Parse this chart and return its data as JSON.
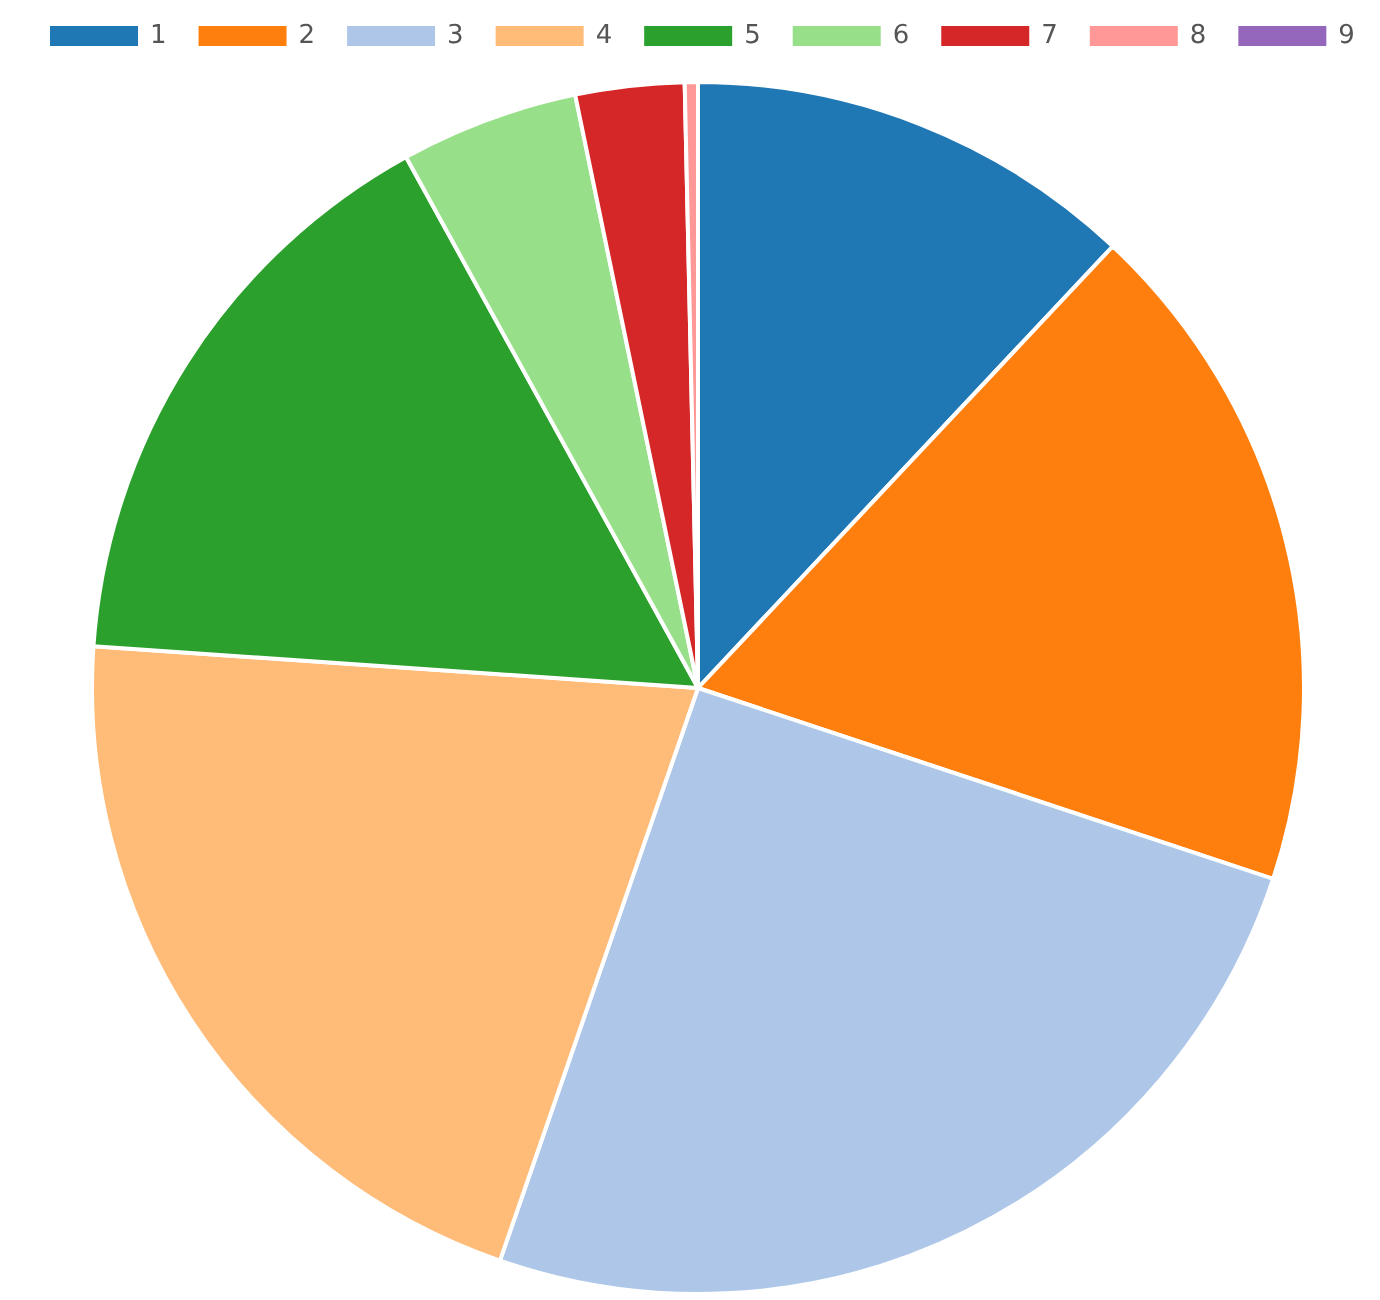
{
  "chart_data": {
    "type": "pie",
    "categories": [
      "1",
      "2",
      "3",
      "4",
      "5",
      "6",
      "7",
      "8",
      "9"
    ],
    "values": [
      12.0,
      18.1,
      25.2,
      20.8,
      15.9,
      4.75,
      2.9,
      0.35,
      0
    ],
    "colors": [
      "#1f77b4",
      "#ff7f0e",
      "#aec7e8",
      "#ffbb78",
      "#2ca02c",
      "#98df8a",
      "#d62728",
      "#ff9896",
      "#9467bd"
    ],
    "legend": "top left"
  }
}
